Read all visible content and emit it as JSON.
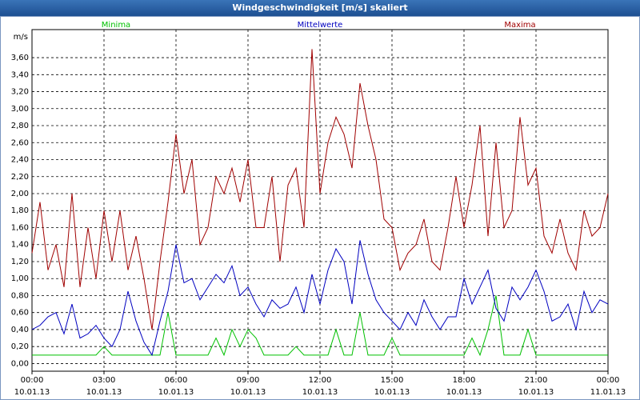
{
  "chart_data": {
    "type": "line",
    "title": "Windgeschwindigkeit [m/s] skaliert",
    "y_unit": "m/s",
    "x": [
      0,
      20,
      40,
      60,
      80,
      100,
      120,
      140,
      160,
      180,
      200,
      220,
      240,
      260,
      280,
      300,
      320,
      340,
      360,
      380,
      400,
      420,
      440,
      460,
      480,
      500,
      520,
      540,
      560,
      580,
      600,
      620,
      640,
      660,
      680,
      700,
      720,
      740,
      760,
      780,
      800,
      820,
      840,
      860,
      880,
      900,
      920,
      940,
      960,
      980,
      1000,
      1020,
      1040,
      1060,
      1080,
      1100,
      1120,
      1140,
      1160,
      1180,
      1200,
      1220,
      1240,
      1260,
      1280,
      1300,
      1320,
      1340,
      1360,
      1380,
      1400,
      1420,
      1440
    ],
    "series": [
      {
        "name": "Minima",
        "color": "#00c000",
        "values": [
          0.1,
          0.1,
          0.1,
          0.1,
          0.1,
          0.1,
          0.1,
          0.1,
          0.1,
          0.2,
          0.1,
          0.1,
          0.1,
          0.1,
          0.1,
          0.1,
          0.1,
          0.6,
          0.1,
          0.1,
          0.1,
          0.1,
          0.1,
          0.3,
          0.1,
          0.4,
          0.2,
          0.4,
          0.3,
          0.1,
          0.1,
          0.1,
          0.1,
          0.2,
          0.1,
          0.1,
          0.1,
          0.1,
          0.4,
          0.1,
          0.1,
          0.6,
          0.1,
          0.1,
          0.1,
          0.3,
          0.1,
          0.1,
          0.1,
          0.1,
          0.1,
          0.1,
          0.1,
          0.1,
          0.1,
          0.3,
          0.1,
          0.4,
          0.8,
          0.1,
          0.1,
          0.1,
          0.4,
          0.1,
          0.1,
          0.1,
          0.1,
          0.1,
          0.1,
          0.1,
          0.1,
          0.1,
          0.1
        ]
      },
      {
        "name": "Mittelwerte",
        "color": "#0000c0",
        "values": [
          0.4,
          0.45,
          0.55,
          0.6,
          0.35,
          0.7,
          0.3,
          0.35,
          0.45,
          0.3,
          0.2,
          0.4,
          0.85,
          0.5,
          0.25,
          0.1,
          0.5,
          0.85,
          1.4,
          0.95,
          1.0,
          0.75,
          0.9,
          1.05,
          0.95,
          1.15,
          0.8,
          0.9,
          0.7,
          0.55,
          0.75,
          0.65,
          0.7,
          0.9,
          0.6,
          1.05,
          0.7,
          1.1,
          1.35,
          1.2,
          0.7,
          1.45,
          1.05,
          0.75,
          0.6,
          0.5,
          0.4,
          0.6,
          0.45,
          0.75,
          0.55,
          0.4,
          0.55,
          0.55,
          1.0,
          0.7,
          0.9,
          1.1,
          0.65,
          0.5,
          0.9,
          0.75,
          0.9,
          1.1,
          0.85,
          0.5,
          0.55,
          0.7,
          0.4,
          0.85,
          0.6,
          0.75,
          0.7
        ]
      },
      {
        "name": "Maxima",
        "color": "#a00000",
        "values": [
          1.3,
          1.9,
          1.1,
          1.4,
          0.9,
          2.0,
          0.9,
          1.6,
          1.0,
          1.8,
          1.2,
          1.8,
          1.1,
          1.5,
          1.0,
          0.4,
          1.2,
          1.9,
          2.7,
          2.0,
          2.4,
          1.4,
          1.6,
          2.2,
          2.0,
          2.3,
          1.9,
          2.4,
          1.6,
          1.6,
          2.2,
          1.2,
          2.1,
          2.3,
          1.6,
          3.7,
          2.0,
          2.6,
          2.9,
          2.7,
          2.3,
          3.3,
          2.8,
          2.4,
          1.7,
          1.6,
          1.1,
          1.3,
          1.4,
          1.7,
          1.2,
          1.1,
          1.6,
          2.2,
          1.6,
          2.1,
          2.8,
          1.5,
          2.6,
          1.6,
          1.8,
          2.9,
          2.1,
          2.3,
          1.5,
          1.3,
          1.7,
          1.3,
          1.1,
          1.8,
          1.5,
          1.6,
          2.0
        ]
      }
    ],
    "xlim": [
      0,
      1440
    ],
    "xticks": [
      {
        "value": 0,
        "label": "00:00"
      },
      {
        "value": 180,
        "label": "03:00"
      },
      {
        "value": 360,
        "label": "06:00"
      },
      {
        "value": 540,
        "label": "09:00"
      },
      {
        "value": 720,
        "label": "12:00"
      },
      {
        "value": 900,
        "label": "15:00"
      },
      {
        "value": 1080,
        "label": "18:00"
      },
      {
        "value": 1260,
        "label": "21:00"
      },
      {
        "value": 1440,
        "label": "00:00"
      }
    ],
    "xtick_dates": [
      "10.01.13",
      "10.01.13",
      "10.01.13",
      "10.01.13",
      "10.01.13",
      "10.01.13",
      "10.01.13",
      "10.01.13",
      "11.01.13"
    ],
    "ylim": [
      -0.09,
      3.93
    ],
    "yticks": [
      {
        "value": 0,
        "label": "0,00"
      },
      {
        "value": 0.2,
        "label": "0,20"
      },
      {
        "value": 0.4,
        "label": "0,40"
      },
      {
        "value": 0.6,
        "label": "0,60"
      },
      {
        "value": 0.8,
        "label": "0,80"
      },
      {
        "value": 1,
        "label": "1,00"
      },
      {
        "value": 1.2,
        "label": "1,20"
      },
      {
        "value": 1.4,
        "label": "1,40"
      },
      {
        "value": 1.6,
        "label": "1,60"
      },
      {
        "value": 1.8,
        "label": "1,80"
      },
      {
        "value": 2,
        "label": "2,00"
      },
      {
        "value": 2.2,
        "label": "2,20"
      },
      {
        "value": 2.4,
        "label": "2,40"
      },
      {
        "value": 2.6,
        "label": "2,60"
      },
      {
        "value": 2.8,
        "label": "2,80"
      },
      {
        "value": 3,
        "label": "3,00"
      },
      {
        "value": 3.2,
        "label": "3,20"
      },
      {
        "value": 3.4,
        "label": "3,40"
      },
      {
        "value": 3.6,
        "label": "3,60"
      }
    ],
    "grid": true
  }
}
